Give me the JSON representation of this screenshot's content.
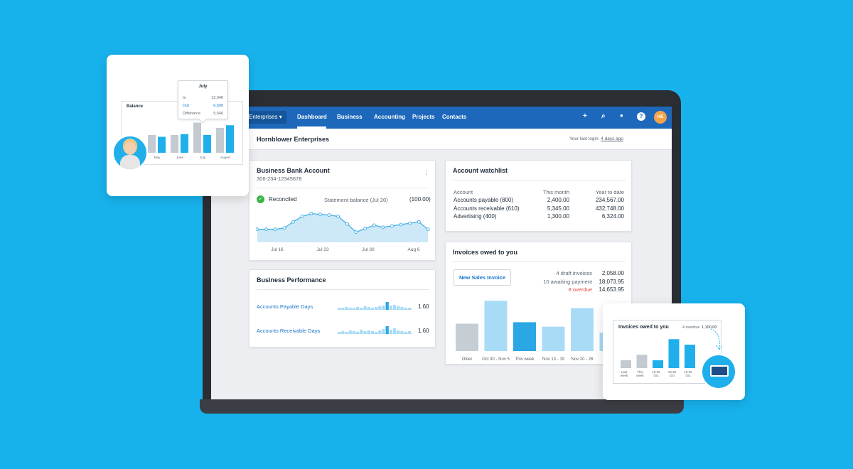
{
  "nav": {
    "org": "Enterprises",
    "items": [
      "Dashboard",
      "Business",
      "Accounting",
      "Projects",
      "Contacts"
    ],
    "avatar": "HE"
  },
  "header": {
    "title": "Hornblower Enterprises",
    "last_login": "Your last login:",
    "last_login_link": "4 days ago"
  },
  "bank": {
    "title": "Business Bank Account",
    "number": "306-234-12345678",
    "status": "Reconciled",
    "statement": "Statement balance (Jul 20)",
    "balance": "(100.00)",
    "points": [
      19,
      19,
      19,
      21,
      30,
      38,
      42,
      41,
      40,
      38,
      27,
      15,
      20,
      25,
      22,
      24,
      26,
      28,
      30,
      19
    ],
    "ylim": [
      0,
      50
    ],
    "x_labels": [
      "Jul 16",
      "Jul 23",
      "Jul 30",
      "Aug 6"
    ]
  },
  "performance": {
    "title": "Business Performance",
    "highlight_index": 13,
    "rows": [
      {
        "label": "Accounts Payable Days",
        "value": "1.60",
        "bars": [
          3,
          3,
          4,
          3,
          3,
          4,
          3,
          5,
          4,
          3,
          4,
          5,
          6,
          11,
          6,
          7,
          5,
          4,
          3,
          3
        ]
      },
      {
        "label": "Accounts Receivable Days",
        "value": "1.60",
        "bars": [
          3,
          4,
          3,
          5,
          4,
          3,
          6,
          4,
          5,
          4,
          3,
          5,
          7,
          11,
          6,
          8,
          5,
          4,
          3,
          4
        ]
      }
    ]
  },
  "watchlist": {
    "title": "Account watchlist",
    "headers": [
      "Account",
      "This month",
      "Year to date"
    ],
    "rows": [
      [
        "Accounts payable (800)",
        "2,400.00",
        "234,567.00"
      ],
      [
        "Accounts receivable (610)",
        "5,345.00",
        "432,748.00"
      ],
      [
        "Advertising (400)",
        "1,300.00",
        "6,324.00"
      ]
    ]
  },
  "invoices": {
    "title": "Invoices owed to you",
    "button": "New Sales Invoice",
    "summary": [
      [
        "4 draft invoices",
        "2,058.00"
      ],
      [
        "10 awaiting payment",
        "18,073.95"
      ],
      [
        "8 overdue",
        "14,653.95"
      ]
    ],
    "chart": {
      "categories": [
        "Older",
        "Oct 30 - Nov 5",
        "This week",
        "Nov 13 - 19",
        "Nov 20 - 26",
        null
      ],
      "values": [
        37,
        68,
        39,
        33,
        58,
        25
      ],
      "ylim": [
        0,
        75
      ],
      "colors": [
        "#c6ced5",
        "#a8dbf6",
        "#2aa7e4",
        "#a8dbf6",
        "#a8dbf6",
        "#a8dbf6"
      ]
    }
  },
  "balance_card": {
    "title": "Balance",
    "categories": [
      "May",
      "June",
      "July",
      "August"
    ],
    "ylim": [
      0,
      40
    ],
    "series": [
      {
        "color": "#c3cad1",
        "values": [
          20,
          20,
          34,
          28
        ]
      },
      {
        "color": "#1fb0ec",
        "values": [
          18,
          21,
          20,
          31
        ]
      }
    ],
    "tooltip": {
      "title": "July",
      "rows": [
        [
          "In",
          "12,046"
        ],
        [
          "Out",
          "6,500"
        ],
        [
          "Difference",
          "5,546"
        ]
      ]
    }
  },
  "overdue_card": {
    "title": "Invoices owed to you",
    "note": "4 overdue",
    "amount": "1,100.00",
    "ylim": [
      0,
      40
    ],
    "categories": [
      "Last week",
      "This week",
      "19-25 Oct",
      "19-25 Oct",
      "19-25 Oct"
    ],
    "values": [
      10,
      17,
      10,
      37,
      30
    ],
    "colors": [
      "#c3cad1",
      "#c3cad1",
      "#1fb0ec",
      "#1fb0ec",
      "#1fb0ec"
    ]
  }
}
